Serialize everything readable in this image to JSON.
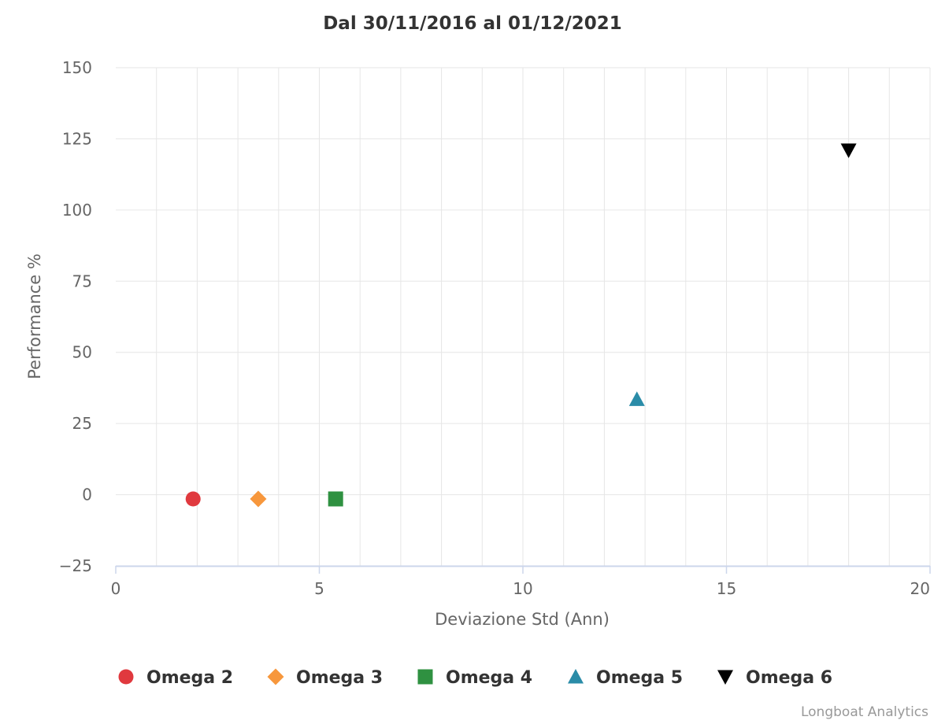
{
  "chart_data": {
    "type": "scatter",
    "title": "Dal 30/11/2016 al 01/12/2021",
    "xlabel": "Deviazione Std (Ann)",
    "ylabel": "Performance %",
    "xlim": [
      0,
      20
    ],
    "ylim": [
      -25,
      150
    ],
    "xticks": [
      0,
      5,
      10,
      15,
      20
    ],
    "yticks": [
      -25,
      0,
      25,
      50,
      75,
      100,
      125,
      150
    ],
    "ytick_labels": [
      "−25",
      "0",
      "25",
      "50",
      "75",
      "100",
      "125",
      "150"
    ],
    "grid": true,
    "legend_position": "bottom",
    "series": [
      {
        "name": "Omega 2",
        "marker": "circle",
        "color": "#e0393e",
        "points": [
          {
            "x": 1.9,
            "y": -1.5
          }
        ]
      },
      {
        "name": "Omega 3",
        "marker": "diamond",
        "color": "#f7973c",
        "points": [
          {
            "x": 3.5,
            "y": -1.5
          }
        ]
      },
      {
        "name": "Omega 4",
        "marker": "square",
        "color": "#2f9141",
        "points": [
          {
            "x": 5.4,
            "y": -1.5
          }
        ]
      },
      {
        "name": "Omega 5",
        "marker": "triangle",
        "color": "#2a8ca8",
        "points": [
          {
            "x": 12.8,
            "y": 33.5
          }
        ]
      },
      {
        "name": "Omega 6",
        "marker": "triangle-down",
        "color": "#000000",
        "points": [
          {
            "x": 18.0,
            "y": 121
          }
        ]
      }
    ]
  },
  "credits": "Longboat Analytics"
}
